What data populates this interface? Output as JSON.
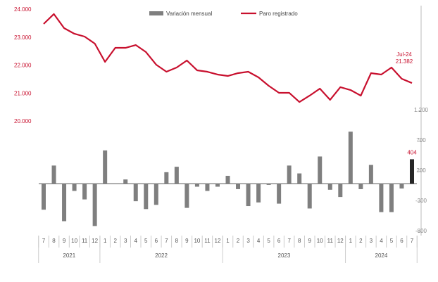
{
  "chart_data": {
    "type": "bar-line",
    "legend": "top",
    "categories": [
      "7",
      "8",
      "9",
      "10",
      "11",
      "12",
      "1",
      "2",
      "3",
      "4",
      "5",
      "6",
      "7",
      "8",
      "9",
      "10",
      "11",
      "12",
      "1",
      "2",
      "3",
      "4",
      "5",
      "6",
      "7",
      "8",
      "9",
      "10",
      "11",
      "12",
      "1",
      "2",
      "3",
      "4",
      "5",
      "6",
      "7"
    ],
    "x_groups": [
      {
        "label": "2021",
        "count": 6
      },
      {
        "label": "2022",
        "count": 12
      },
      {
        "label": "2023",
        "count": 12
      },
      {
        "label": "2024",
        "count": 7
      }
    ],
    "ylim": [
      -800,
      1200
    ],
    "yticks": [
      {
        "value": 1200,
        "label": "1.200"
      },
      700,
      200,
      -300,
      -800
    ],
    "y2lim": [
      20000,
      24000
    ],
    "y2ticks": [
      {
        "value": 24000,
        "label": "24.000"
      },
      {
        "value": 23000,
        "label": "23.000"
      },
      {
        "value": 22000,
        "label": "22.000"
      },
      {
        "value": 21000,
        "label": "21.000"
      },
      {
        "value": 20000,
        "label": "20.000"
      }
    ],
    "annotation": "Jul-24",
    "series": [
      {
        "name": "Variación mensual",
        "type": "bar",
        "color": "#7f7f7f",
        "highlight_color": "#262626",
        "values": [
          -430,
          300,
          -620,
          -120,
          -260,
          -700,
          550,
          0,
          70,
          -290,
          -420,
          -350,
          190,
          280,
          -400,
          -50,
          -120,
          -50,
          130,
          -90,
          -370,
          -310,
          -20,
          -330,
          300,
          170,
          -410,
          450,
          -100,
          -220,
          860,
          -90,
          310,
          -470,
          -470,
          -80,
          404
        ],
        "value_labels": [
          null,
          null,
          null,
          null,
          null,
          null,
          null,
          null,
          null,
          null,
          null,
          null,
          null,
          null,
          null,
          null,
          null,
          null,
          null,
          null,
          null,
          null,
          null,
          null,
          null,
          null,
          null,
          null,
          null,
          null,
          null,
          null,
          null,
          null,
          null,
          null,
          "404"
        ]
      },
      {
        "name": "Paro registrado",
        "type": "line",
        "axis": "y2",
        "color": "#c8102e",
        "values": [
          23497,
          23850,
          23346,
          23145,
          23044,
          22792,
          22138,
          22641,
          22641,
          22742,
          22490,
          22038,
          21786,
          21937,
          22189,
          21837,
          21786,
          21686,
          21635,
          21736,
          21786,
          21585,
          21283,
          21032,
          21032,
          20704,
          20931,
          21182,
          20780,
          21233,
          21132,
          20931,
          21736,
          21686,
          21937,
          21535,
          21382
        ],
        "value_labels": [
          null,
          null,
          null,
          null,
          null,
          null,
          null,
          null,
          null,
          null,
          null,
          null,
          null,
          null,
          null,
          null,
          null,
          null,
          null,
          null,
          null,
          null,
          null,
          null,
          null,
          null,
          null,
          null,
          null,
          null,
          null,
          null,
          null,
          null,
          null,
          null,
          "21.382"
        ]
      }
    ]
  }
}
